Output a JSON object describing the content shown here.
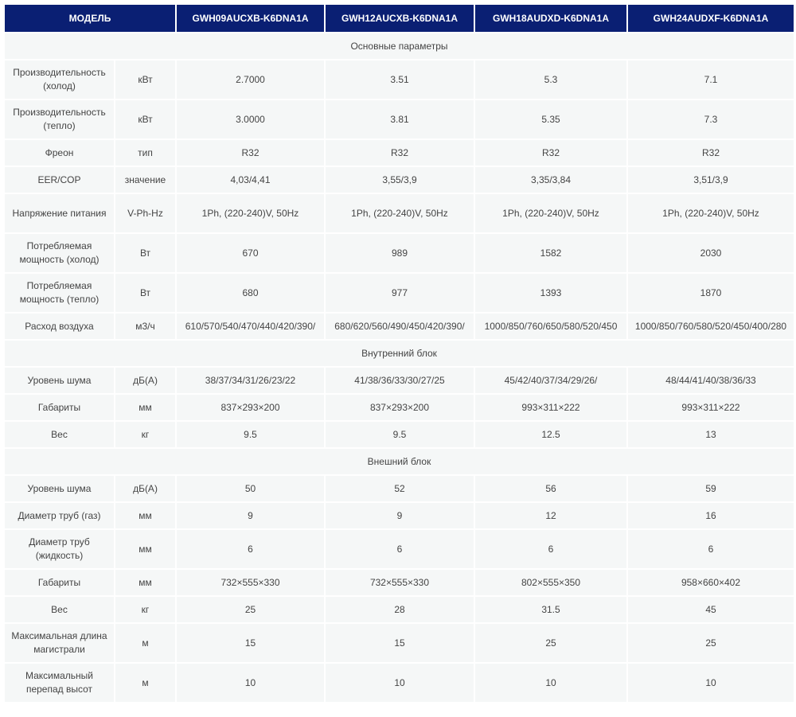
{
  "header": {
    "model_label": "МОДЕЛЬ",
    "models": [
      "GWH09AUCXB-K6DNA1A",
      "GWH12AUCXB-K6DNA1A",
      "GWH18AUDXD-K6DNA1A",
      "GWH24AUDXF-K6DNA1A"
    ]
  },
  "colors": {
    "header_bg": "#0a1f73",
    "cell_bg": "#f5f7f7"
  },
  "sections": [
    {
      "title": "Основные параметры",
      "rows": [
        {
          "label": "Производительность (холод)",
          "unit": "кВт",
          "values": [
            "2.7000",
            "3.51",
            "5.3",
            "7.1"
          ],
          "tall": true
        },
        {
          "label": "Производительность (тепло)",
          "unit": "кВт",
          "values": [
            "3.0000",
            "3.81",
            "5.35",
            "7.3"
          ],
          "tall": true
        },
        {
          "label": "Фреон",
          "unit": "тип",
          "values": [
            "R32",
            "R32",
            "R32",
            "R32"
          ]
        },
        {
          "label": "EER/COP",
          "unit": "значение",
          "values": [
            "4,03/4,41",
            "3,55/3,9",
            "3,35/3,84",
            "3,51/3,9"
          ]
        },
        {
          "label": "Напряжение питания",
          "unit": "V-Ph-Hz",
          "values": [
            "1Ph, (220-240)V, 50Hz",
            "1Ph, (220-240)V, 50Hz",
            "1Ph, (220-240)V, 50Hz",
            "1Ph, (220-240)V, 50Hz"
          ],
          "tall": true
        },
        {
          "label": "Потребляемая мощность (холод)",
          "unit": "Вт",
          "values": [
            "670",
            "989",
            "1582",
            "2030"
          ],
          "tall": true
        },
        {
          "label": "Потребляемая мощность (тепло)",
          "unit": "Вт",
          "values": [
            "680",
            "977",
            "1393",
            "1870"
          ],
          "tall": true
        },
        {
          "label": "Расход воздуха",
          "unit": "м3/ч",
          "values": [
            "610/570/540/470/440/420/390/",
            "680/620/560/490/450/420/390/",
            "1000/850/760/650/580/520/450",
            "1000/850/760/580/520/450/400/280"
          ]
        }
      ]
    },
    {
      "title": "Внутренний блок",
      "rows": [
        {
          "label": "Уровень шума",
          "unit": "дБ(А)",
          "values": [
            "38/37/34/31/26/23/22",
            "41/38/36/33/30/27/25",
            "45/42/40/37/34/29/26/",
            "48/44/41/40/38/36/33"
          ]
        },
        {
          "label": "Габариты",
          "unit": "мм",
          "values": [
            "837×293×200",
            "837×293×200",
            "993×311×222",
            "993×311×222"
          ]
        },
        {
          "label": "Вес",
          "unit": "кг",
          "values": [
            "9.5",
            "9.5",
            "12.5",
            "13"
          ]
        }
      ]
    },
    {
      "title": "Внешний блок",
      "rows": [
        {
          "label": "Уровень шума",
          "unit": "дБ(А)",
          "values": [
            "50",
            "52",
            "56",
            "59"
          ]
        },
        {
          "label": "Диаметр труб (газ)",
          "unit": "мм",
          "values": [
            "9",
            "9",
            "12",
            "16"
          ]
        },
        {
          "label": "Диаметр труб (жидкость)",
          "unit": "мм",
          "values": [
            "6",
            "6",
            "6",
            "6"
          ],
          "tall": true
        },
        {
          "label": "Габариты",
          "unit": "мм",
          "values": [
            "732×555×330",
            "732×555×330",
            "802×555×350",
            "958×660×402"
          ]
        },
        {
          "label": "Вес",
          "unit": "кг",
          "values": [
            "25",
            "28",
            "31.5",
            "45"
          ]
        },
        {
          "label": "Максимальная длина магистрали",
          "unit": "м",
          "values": [
            "15",
            "15",
            "25",
            "25"
          ],
          "tall": true
        },
        {
          "label": "Максимальный перепад высот",
          "unit": "м",
          "values": [
            "10",
            "10",
            "10",
            "10"
          ],
          "tall": true
        }
      ]
    }
  ]
}
